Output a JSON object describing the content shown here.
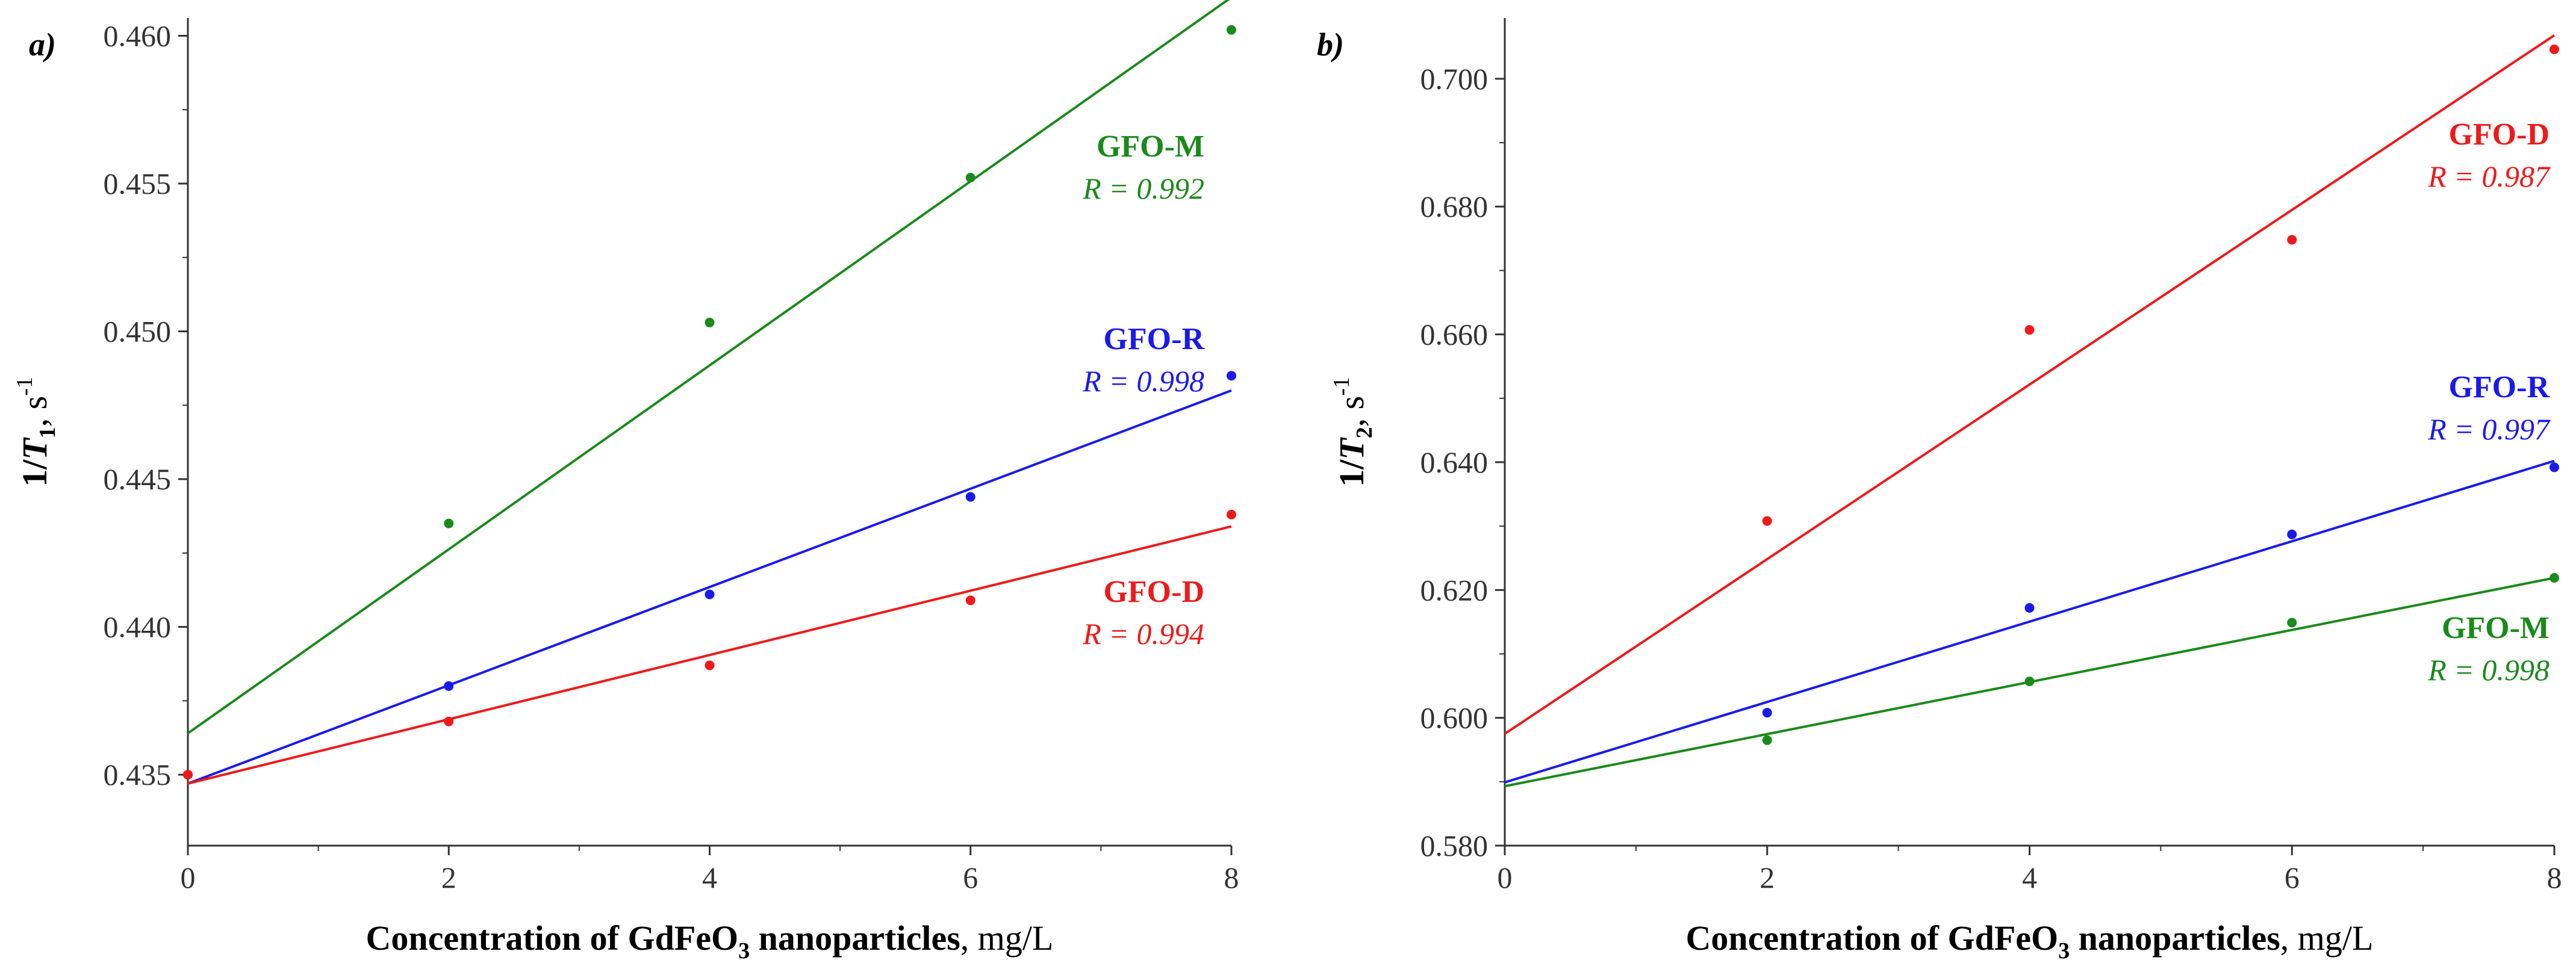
{
  "chart_data": [
    {
      "type": "scatter",
      "panel_label": "a)",
      "xlabel": {
        "main": "Concentration of GdFeO",
        "sub": "3",
        "rest": " nanoparticles",
        "unit": ", mg/L"
      },
      "ylabel": {
        "prefix": "1/",
        "var": "T",
        "sub": "1",
        "unit_pre": ", s",
        "unit_sup": "-1"
      },
      "xlim": [
        0,
        8
      ],
      "ylim": [
        0.4326,
        0.4606
      ],
      "x_ticks": [
        0,
        2,
        4,
        6,
        8
      ],
      "x_tick_labels": [
        "0",
        "2",
        "4",
        "6",
        "8"
      ],
      "y_ticks": [
        0.435,
        0.44,
        0.445,
        0.45,
        0.455,
        0.46
      ],
      "y_tick_labels": [
        "0.435",
        "0.440",
        "0.445",
        "0.450",
        "0.455",
        "0.460"
      ],
      "grid": false,
      "series": [
        {
          "name": "GFO-M",
          "r_label": "R = 0.992",
          "color": "#1a8a1a",
          "x": [
            0,
            2,
            4,
            6,
            8
          ],
          "y": [
            0.435,
            0.4435,
            0.4503,
            0.4552,
            0.4602
          ],
          "fit": [
            [
              0,
              0.4364
            ],
            [
              8,
              0.4613
            ]
          ],
          "label_pos": "upper-right"
        },
        {
          "name": "GFO-R",
          "r_label": "R = 0.998",
          "color": "#1a1aee",
          "x": [
            0,
            2,
            4,
            6,
            8
          ],
          "y": [
            0.435,
            0.438,
            0.4411,
            0.4444,
            0.4485
          ],
          "fit": [
            [
              0,
              0.4347
            ],
            [
              8,
              0.448
            ]
          ],
          "label_pos": "middle-right"
        },
        {
          "name": "GFO-D",
          "r_label": "R = 0.994",
          "color": "#ee1a1a",
          "x": [
            0,
            2,
            4,
            6,
            8
          ],
          "y": [
            0.435,
            0.4368,
            0.4387,
            0.4409,
            0.4438
          ],
          "fit": [
            [
              0,
              0.4347
            ],
            [
              8,
              0.4434
            ]
          ],
          "label_pos": "lower-right"
        }
      ]
    },
    {
      "type": "scatter",
      "panel_label": "b)",
      "xlabel": {
        "main": "Concentration of GdFeO",
        "sub": "3",
        "rest": " nanoparticles",
        "unit": ", mg/L"
      },
      "ylabel": {
        "prefix": "1/",
        "var": "T",
        "sub": "2",
        "unit_pre": ", s",
        "unit_sup": "-1"
      },
      "xlim": [
        0,
        8
      ],
      "ylim": [
        0.58,
        0.7095
      ],
      "x_ticks": [
        0,
        2,
        4,
        6,
        8
      ],
      "x_tick_labels": [
        "0",
        "2",
        "4",
        "6",
        "8"
      ],
      "y_ticks": [
        0.58,
        0.6,
        0.62,
        0.64,
        0.66,
        0.68,
        0.7
      ],
      "y_tick_labels": [
        "0.580",
        "0.600",
        "0.620",
        "0.640",
        "0.660",
        "0.680",
        "0.700"
      ],
      "grid": false,
      "series": [
        {
          "name": "GFO-D",
          "r_label": "R = 0.987",
          "color": "#ee1a1a",
          "x": [
            2,
            4,
            6,
            8
          ],
          "y": [
            0.6308,
            0.6607,
            0.6748,
            0.7046
          ],
          "fit": [
            [
              0,
              0.5975
            ],
            [
              8,
              0.7068
            ]
          ],
          "label_pos": "upper-right"
        },
        {
          "name": "GFO-R",
          "r_label": "R = 0.997",
          "color": "#1a1aee",
          "x": [
            2,
            4,
            6,
            8
          ],
          "y": [
            0.6008,
            0.6172,
            0.6287,
            0.6392
          ],
          "fit": [
            [
              0,
              0.5899
            ],
            [
              8,
              0.6402
            ]
          ],
          "label_pos": "middle-right"
        },
        {
          "name": "GFO-M",
          "r_label": "R = 0.998",
          "color": "#1a8a1a",
          "x": [
            2,
            4,
            6,
            8
          ],
          "y": [
            0.5965,
            0.6057,
            0.6149,
            0.6219
          ],
          "fit": [
            [
              0,
              0.5893
            ],
            [
              8,
              0.6219
            ]
          ],
          "label_pos": "lower-right"
        }
      ]
    }
  ]
}
